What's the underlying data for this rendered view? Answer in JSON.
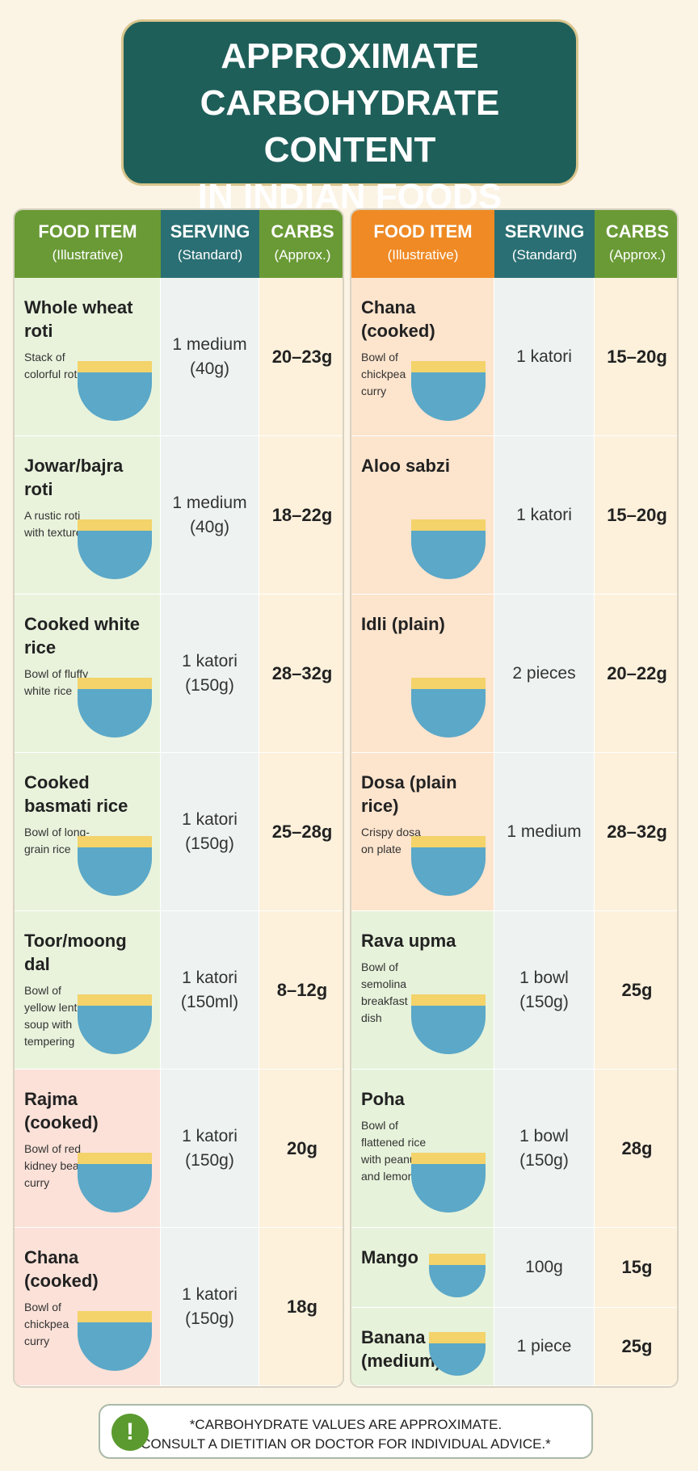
{
  "header": {
    "title_lines": [
      "APPROXIMATE",
      "CARBOHYDRATE CONTENT",
      "IN INDIAN FOODS"
    ]
  },
  "tables": [
    {
      "columns": [
        {
          "title": "FOOD ITEM",
          "sub": "(Illustrative)"
        },
        {
          "title": "SERVING",
          "sub": "(Standard)"
        },
        {
          "title": "CARBS",
          "sub": "(Approx.)"
        }
      ],
      "rows": [
        {
          "name": "Whole wheat roti",
          "description": "Stack of colorful rotis",
          "serving": [
            "1 medium",
            "(40g)"
          ],
          "carbs": "20–23g"
        },
        {
          "name": "Jowar/bajra roti",
          "description": "A rustic roti with texture",
          "serving": [
            "1 medium",
            "(40g)"
          ],
          "carbs": "18–22g"
        },
        {
          "name": "Cooked white rice",
          "description": "Bowl of fluffy white rice",
          "serving": [
            "1 katori",
            "(150g)"
          ],
          "carbs": "28–32g"
        },
        {
          "name": "Cooked basmati rice",
          "description": "Bowl of long-grain rice",
          "serving": [
            "1 katori",
            "(150g)"
          ],
          "carbs": "25–28g"
        },
        {
          "name": "Toor/moong dal",
          "description": "Bowl of yellow lentil soup with tempering",
          "serving": [
            "1 katori",
            "(150ml)"
          ],
          "carbs": "8–12g"
        },
        {
          "name": "Rajma (cooked)",
          "description": "Bowl of red kidney bean curry",
          "serving": [
            "1 katori",
            "(150g)"
          ],
          "carbs": "20g"
        },
        {
          "name": "Chana (cooked)",
          "description": "Bowl of chickpea curry",
          "serving": [
            "1 katori",
            "(150g)"
          ],
          "carbs": "18g"
        }
      ]
    },
    {
      "columns": [
        {
          "title": "FOOD ITEM",
          "sub": "(Illustrative)"
        },
        {
          "title": "SERVING",
          "sub": "(Standard)"
        },
        {
          "title": "CARBS",
          "sub": "(Approx.)"
        }
      ],
      "rows": [
        {
          "name": "Chana (cooked)",
          "description": "Bowl of chickpea curry",
          "serving": [
            "1 katori"
          ],
          "carbs": "15–20g"
        },
        {
          "name": "Aloo sabzi",
          "description": null,
          "serving": [
            "1 katori"
          ],
          "carbs": "15–20g"
        },
        {
          "name": "Idli (plain)",
          "description": null,
          "serving": [
            "2 pieces"
          ],
          "carbs": "20–22g"
        },
        {
          "name": "Dosa (plain rice)",
          "description": "Crispy dosa on plate",
          "serving": [
            "1 medium"
          ],
          "carbs": "28–32g"
        },
        {
          "name": "Rava upma",
          "description": "Bowl of semolina breakfast dish",
          "serving": [
            "1 bowl",
            "(150g)"
          ],
          "carbs": "25g"
        },
        {
          "name": "Poha",
          "description": "Bowl of flattened rice with peanuts and lemon",
          "serving": [
            "1 bowl",
            "(150g)"
          ],
          "carbs": "28g"
        },
        {
          "name": "Mango",
          "description": null,
          "serving": [
            "100g"
          ],
          "carbs": "15g"
        },
        {
          "name": "Banana (medium)",
          "description": null,
          "serving": [
            "1 piece"
          ],
          "carbs": "25g"
        }
      ]
    }
  ],
  "footer": {
    "icon": "!",
    "lines": [
      "*CARBOHYDRATE VALUES ARE APPROXIMATE.",
      "CONSULT A DIETITIAN OR DOCTOR FOR INDIVIDUAL ADVICE.*"
    ]
  }
}
